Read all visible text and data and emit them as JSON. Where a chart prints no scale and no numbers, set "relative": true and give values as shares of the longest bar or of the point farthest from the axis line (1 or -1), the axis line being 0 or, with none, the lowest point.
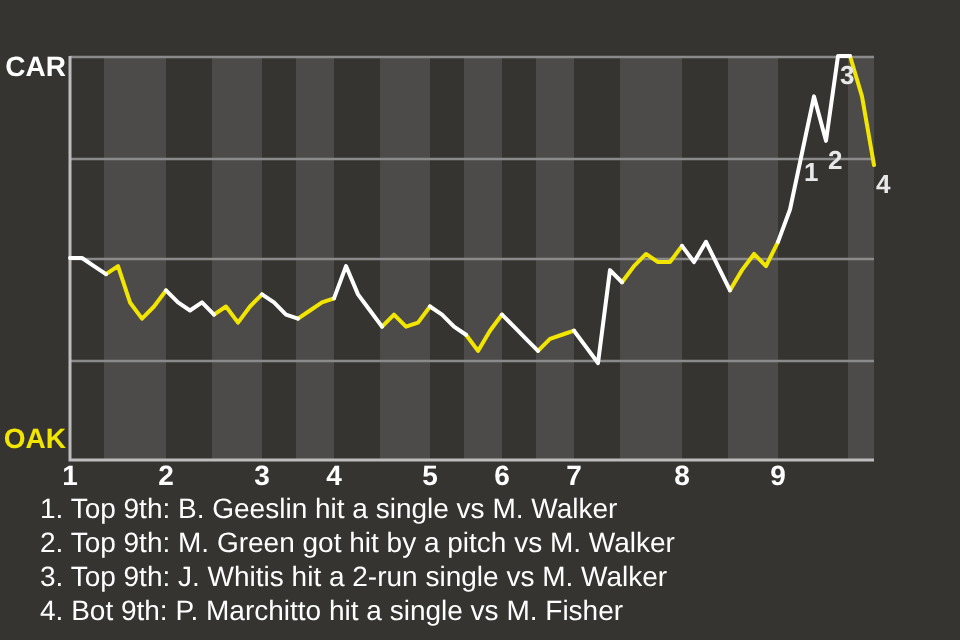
{
  "chart_data": {
    "type": "line",
    "relative": true,
    "categories": [
      "1",
      null,
      null,
      null,
      null,
      null,
      null,
      null,
      "2",
      null,
      null,
      null,
      null,
      null,
      null,
      null,
      "3",
      null,
      null,
      null,
      null,
      null,
      "4",
      null,
      null,
      null,
      null,
      null,
      null,
      null,
      "5",
      null,
      null,
      null,
      null,
      null,
      "6",
      null,
      null,
      null,
      null,
      null,
      "7",
      null,
      null,
      null,
      null,
      null,
      null,
      null,
      null,
      "8",
      null,
      null,
      null,
      null,
      null,
      null,
      null,
      "9",
      null,
      null,
      null,
      null,
      null,
      null,
      null,
      null
    ],
    "grid": "y",
    "legend": false,
    "marker": "none",
    "line_style": "solid",
    "series": [
      {
        "name": "CAR",
        "color": "#ffffff",
        "values": [
          0.5,
          0.5,
          0.48,
          0.46,
          null,
          null,
          null,
          null,
          0.42,
          0.39,
          0.37,
          0.39,
          0.36,
          null,
          null,
          null,
          0.41,
          0.39,
          0.36,
          0.35,
          null,
          null,
          0.4,
          0.48,
          0.41,
          0.37,
          0.33,
          null,
          null,
          null,
          0.38,
          0.36,
          0.33,
          0.31,
          null,
          null,
          0.36,
          0.33,
          0.3,
          0.27,
          null,
          null,
          0.32,
          0.28,
          0.24,
          0.47,
          0.44,
          null,
          null,
          null,
          null,
          0.53,
          0.49,
          0.54,
          0.48,
          0.42,
          null,
          null,
          null,
          0.54,
          0.62,
          0.76,
          0.9,
          0.79,
          1,
          1,
          null,
          null
        ]
      },
      {
        "name": "OAK",
        "color": "#f2e600",
        "values": [
          null,
          null,
          null,
          0.46,
          0.48,
          0.39,
          0.35,
          0.38,
          0.42,
          null,
          null,
          null,
          0.36,
          0.38,
          0.34,
          0.38,
          0.41,
          null,
          null,
          0.35,
          0.37,
          0.39,
          0.4,
          null,
          null,
          null,
          0.33,
          0.36,
          0.33,
          0.34,
          0.38,
          null,
          null,
          0.31,
          0.27,
          0.32,
          0.36,
          null,
          null,
          0.27,
          0.3,
          0.31,
          0.32,
          null,
          null,
          null,
          0.44,
          0.48,
          0.51,
          0.49,
          0.49,
          0.53,
          null,
          null,
          null,
          0.42,
          0.47,
          0.51,
          0.48,
          0.54,
          null,
          null,
          null,
          null,
          null,
          1,
          0.9,
          0.73
        ]
      }
    ],
    "annotations": [
      {
        "text": "1",
        "y": 0.76
      },
      {
        "text": "2",
        "y": 0.79
      },
      {
        "text": "3",
        "y": 1
      },
      {
        "text": "4",
        "y": 0.73
      },
      "1. Top 9th: B. Geeslin hit a single vs M. Walker",
      "2. Top 9th: M. Green got hit by a pitch vs M. Walker",
      "3. Top 9th: J. Whitis hit a 2-run single vs M. Walker",
      "4. Bot 9th: P. Marchitto hit a single vs M. Fisher"
    ]
  }
}
